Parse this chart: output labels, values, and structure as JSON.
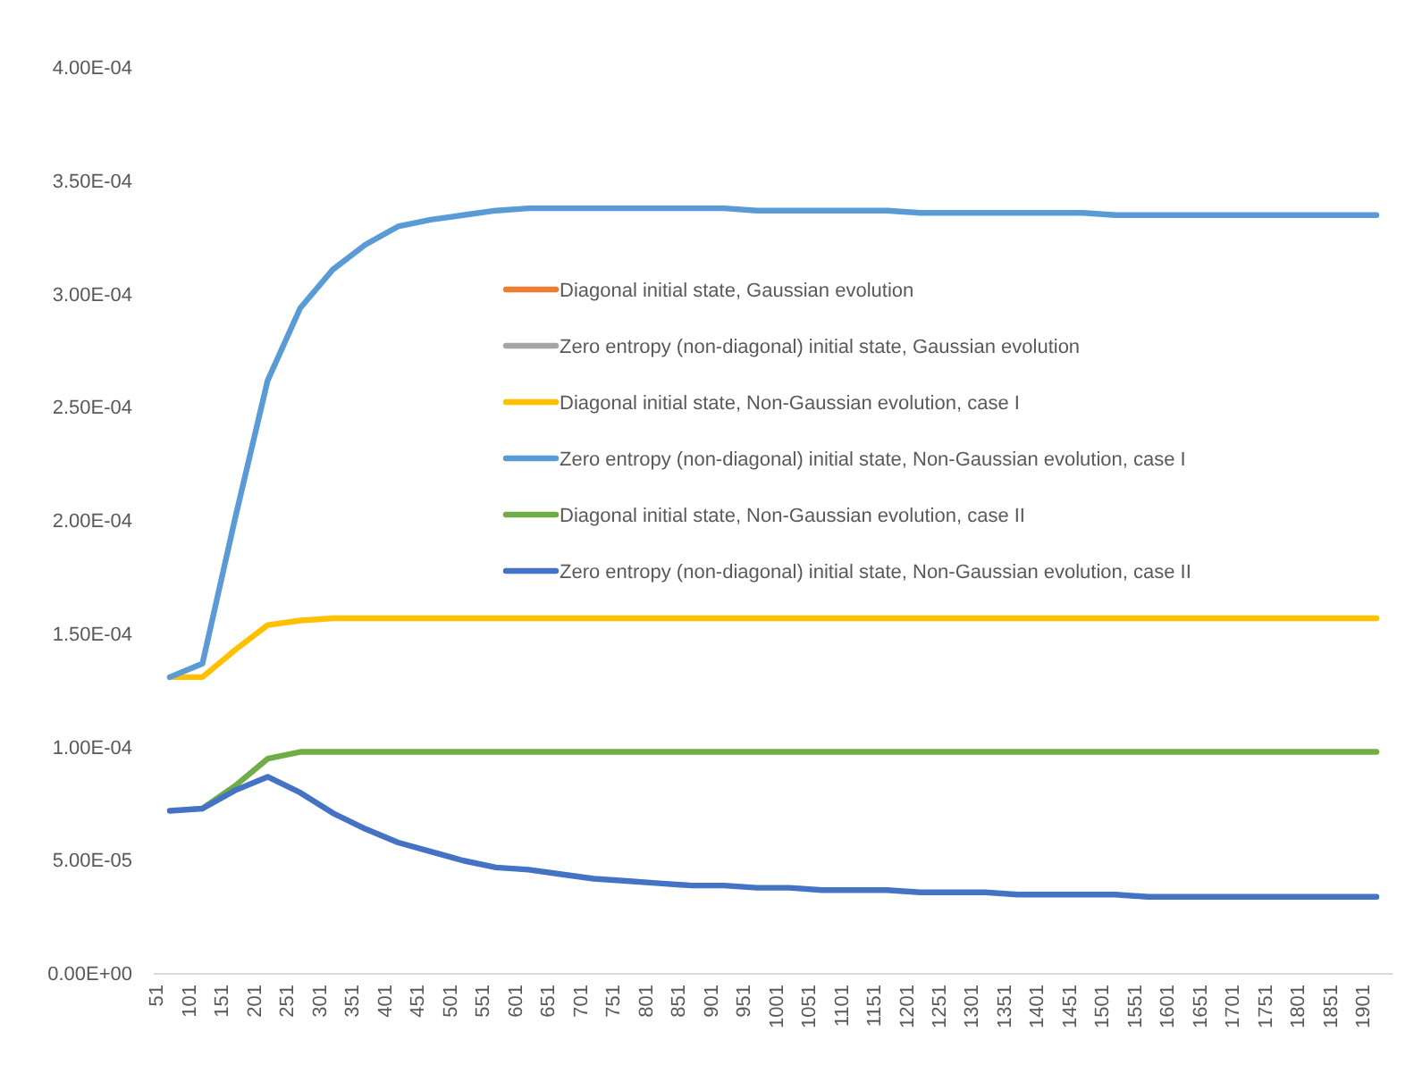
{
  "chart_data": {
    "type": "line",
    "categories": [
      "51",
      "101",
      "151",
      "201",
      "251",
      "301",
      "351",
      "401",
      "451",
      "501",
      "551",
      "601",
      "651",
      "701",
      "751",
      "801",
      "851",
      "901",
      "951",
      "1001",
      "1051",
      "1101",
      "1151",
      "1201",
      "1251",
      "1301",
      "1351",
      "1401",
      "1451",
      "1501",
      "1551",
      "1601",
      "1651",
      "1701",
      "1751",
      "1801",
      "1851",
      "1901"
    ],
    "ylim": [
      0,
      0.0004
    ],
    "yticks": [
      {
        "value": 0,
        "label": "0.00E+00"
      },
      {
        "value": 5e-05,
        "label": "5.00E-05"
      },
      {
        "value": 0.0001,
        "label": "1.00E-04"
      },
      {
        "value": 0.00015,
        "label": "1.50E-04"
      },
      {
        "value": 0.0002,
        "label": "2.00E-04"
      },
      {
        "value": 0.00025,
        "label": "2.50E-04"
      },
      {
        "value": 0.0003,
        "label": "3.00E-04"
      },
      {
        "value": 0.00035,
        "label": "3.50E-04"
      },
      {
        "value": 0.0004,
        "label": "4.00E-04"
      }
    ],
    "grid": false,
    "legend": "center",
    "marker": "none",
    "line_style": "solid",
    "series": [
      {
        "name": "Diagonal initial state, Gaussian evolution",
        "color": "#ed7d31",
        "values": [
          null,
          null,
          null,
          null,
          null,
          null,
          null,
          null,
          null,
          null,
          null,
          null,
          null,
          null,
          null,
          null,
          null,
          null,
          null,
          null,
          null,
          null,
          null,
          null,
          null,
          null,
          null,
          null,
          null,
          null,
          null,
          null,
          null,
          null,
          null,
          null,
          null,
          null
        ]
      },
      {
        "name": "Zero entropy (non-diagonal) initial state, Gaussian evolution",
        "color": "#a5a5a5",
        "values": [
          null,
          null,
          null,
          null,
          null,
          null,
          null,
          null,
          null,
          null,
          null,
          null,
          null,
          null,
          null,
          null,
          null,
          null,
          null,
          null,
          null,
          null,
          null,
          null,
          null,
          null,
          null,
          null,
          null,
          null,
          null,
          null,
          null,
          null,
          null,
          null,
          null,
          null
        ]
      },
      {
        "name": "Diagonal initial state, Non-Gaussian evolution, case I",
        "color": "#ffc000",
        "values": [
          0.000131,
          0.000131,
          0.000143,
          0.000154,
          0.000156,
          0.000157,
          0.000157,
          0.000157,
          0.000157,
          0.000157,
          0.000157,
          0.000157,
          0.000157,
          0.000157,
          0.000157,
          0.000157,
          0.000157,
          0.000157,
          0.000157,
          0.000157,
          0.000157,
          0.000157,
          0.000157,
          0.000157,
          0.000157,
          0.000157,
          0.000157,
          0.000157,
          0.000157,
          0.000157,
          0.000157,
          0.000157,
          0.000157,
          0.000157,
          0.000157,
          0.000157,
          0.000157,
          0.000157
        ]
      },
      {
        "name": "Zero entropy (non-diagonal) initial state, Non-Gaussian evolution, case I",
        "color": "#5b9bd5",
        "values": [
          0.000131,
          0.000137,
          0.000201,
          0.000262,
          0.000294,
          0.000311,
          0.000322,
          0.00033,
          0.000333,
          0.000335,
          0.000337,
          0.000338,
          0.000338,
          0.000338,
          0.000338,
          0.000338,
          0.000338,
          0.000338,
          0.000337,
          0.000337,
          0.000337,
          0.000337,
          0.000337,
          0.000336,
          0.000336,
          0.000336,
          0.000336,
          0.000336,
          0.000336,
          0.000335,
          0.000335,
          0.000335,
          0.000335,
          0.000335,
          0.000335,
          0.000335,
          0.000335,
          0.000335
        ]
      },
      {
        "name": "Diagonal initial state, Non-Gaussian evolution, case II",
        "color": "#70ad47",
        "values": [
          null,
          7.3e-05,
          8.3e-05,
          9.5e-05,
          9.8e-05,
          9.8e-05,
          9.8e-05,
          9.8e-05,
          9.8e-05,
          9.8e-05,
          9.8e-05,
          9.8e-05,
          9.8e-05,
          9.8e-05,
          9.8e-05,
          9.8e-05,
          9.8e-05,
          9.8e-05,
          9.8e-05,
          9.8e-05,
          9.8e-05,
          9.8e-05,
          9.8e-05,
          9.8e-05,
          9.8e-05,
          9.8e-05,
          9.8e-05,
          9.8e-05,
          9.8e-05,
          9.8e-05,
          9.8e-05,
          9.8e-05,
          9.8e-05,
          9.8e-05,
          9.8e-05,
          9.8e-05,
          9.8e-05,
          9.8e-05
        ]
      },
      {
        "name": "Zero entropy (non-diagonal) initial state, Non-Gaussian evolution, case II",
        "color": "#4472c4",
        "values": [
          7.2e-05,
          7.3e-05,
          8.1e-05,
          8.7e-05,
          8e-05,
          7.1e-05,
          6.4e-05,
          5.8e-05,
          5.4e-05,
          5e-05,
          4.7e-05,
          4.6e-05,
          4.4e-05,
          4.2e-05,
          4.1e-05,
          4e-05,
          3.9e-05,
          3.9e-05,
          3.8e-05,
          3.8e-05,
          3.7e-05,
          3.7e-05,
          3.7e-05,
          3.6e-05,
          3.6e-05,
          3.6e-05,
          3.5e-05,
          3.5e-05,
          3.5e-05,
          3.5e-05,
          3.4e-05,
          3.4e-05,
          3.4e-05,
          3.4e-05,
          3.4e-05,
          3.4e-05,
          3.4e-05,
          3.4e-05
        ]
      }
    ]
  }
}
